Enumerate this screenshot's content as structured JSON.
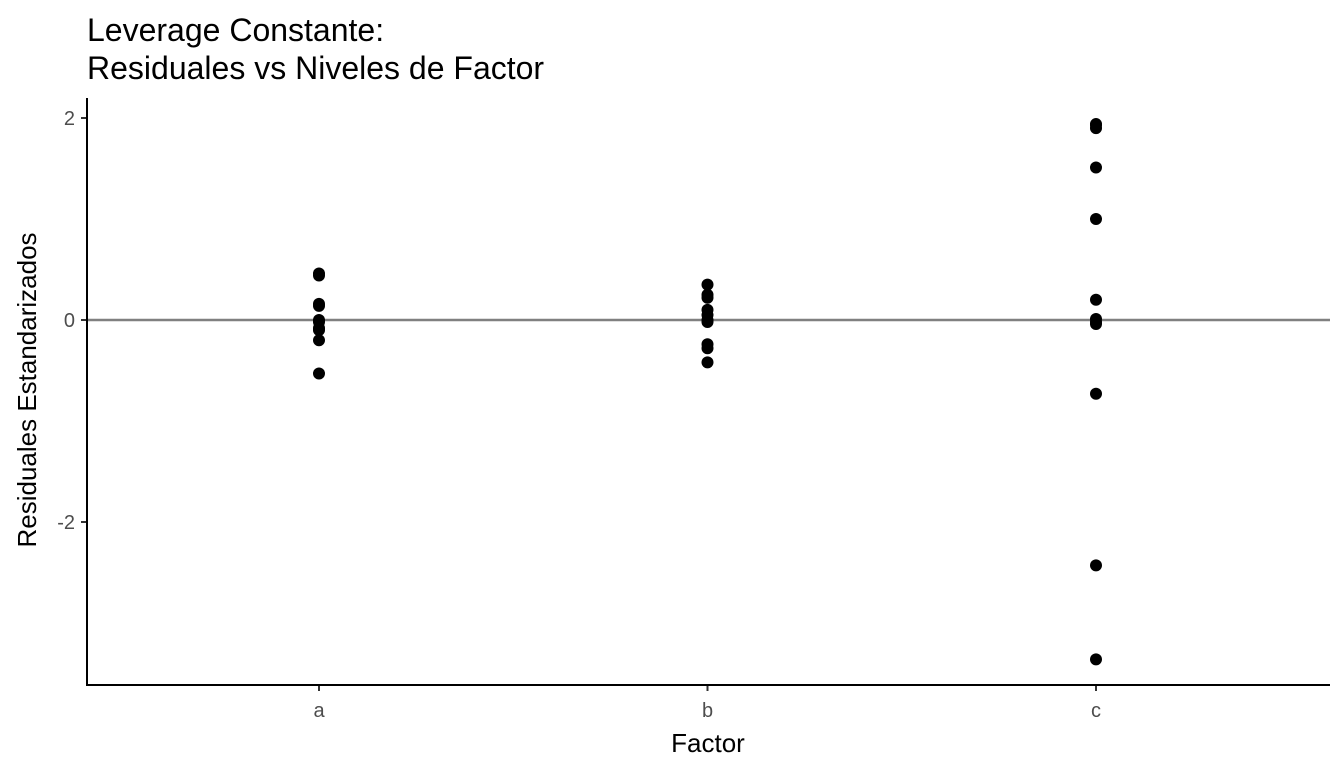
{
  "chart_data": {
    "type": "scatter",
    "title_line1": "Leverage Constante:",
    "title_line2": "Residuales vs Niveles de Factor",
    "xlabel": "Factor",
    "ylabel": "Residuales Estandarizados",
    "categories": [
      "a",
      "b",
      "c"
    ],
    "y_ticks": [
      2,
      0,
      -2
    ],
    "y_tick_labels": [
      "2",
      "0",
      "-2"
    ],
    "ylim": [
      -3.6,
      2.2
    ],
    "reference_line": {
      "y": 0,
      "color": "#808080"
    },
    "grid": false,
    "point_color": "#000000",
    "series": [
      {
        "x": [
          "a",
          "a",
          "a",
          "a",
          "a",
          "a",
          "a",
          "a",
          "a",
          "a"
        ],
        "y": [
          0.46,
          0.44,
          0.16,
          0.14,
          0.0,
          -0.02,
          -0.08,
          -0.1,
          -0.2,
          -0.53
        ]
      },
      {
        "x": [
          "b",
          "b",
          "b",
          "b",
          "b",
          "b",
          "b",
          "b",
          "b",
          "b"
        ],
        "y": [
          0.35,
          0.25,
          0.22,
          0.1,
          0.05,
          0.0,
          -0.02,
          -0.24,
          -0.28,
          -0.42
        ]
      },
      {
        "x": [
          "c",
          "c",
          "c",
          "c",
          "c",
          "c",
          "c",
          "c",
          "c",
          "c",
          "c",
          "c"
        ],
        "y": [
          1.94,
          1.9,
          1.51,
          1.0,
          0.2,
          0.01,
          -0.02,
          -0.04,
          -0.73,
          -2.43,
          -3.36,
          1.93
        ]
      }
    ]
  }
}
